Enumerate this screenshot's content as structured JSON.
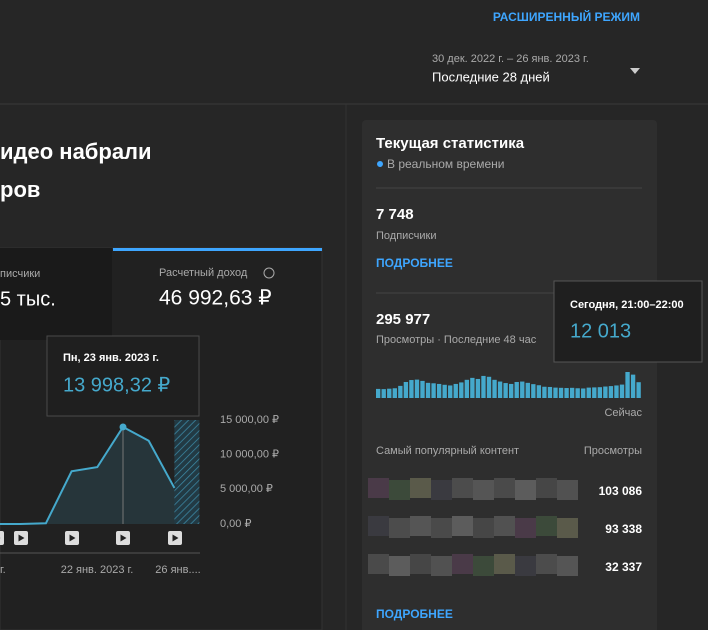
{
  "header": {
    "advanced_mode": "РАСШИРЕННЫЙ РЕЖИМ",
    "date_range": "30 дек. 2022 г. – 26 янв. 2023 г.",
    "period": "Последние 28 дней"
  },
  "overview": {
    "headline": [
      "идео набрали",
      "ров"
    ],
    "tabs": [
      {
        "label": "писчики",
        "value": "5 тыс."
      },
      {
        "label": "Расчетный доход",
        "value": "46 992,63 ₽"
      }
    ],
    "tooltip": {
      "date": "Пн, 23 янв. 2023 г.",
      "value": "13 998,32 ₽"
    },
    "chart": {
      "type": "line",
      "values": [
        0,
        0,
        100,
        7600,
        8200,
        13998.32,
        12000,
        5200
      ],
      "color": "#45a9cc",
      "ylim": [
        0,
        15000
      ],
      "yticks": [
        {
          "value": 0,
          "label": "0,00 ₽"
        },
        {
          "value": 5000,
          "label": "5 000,00 ₽"
        },
        {
          "value": 10000,
          "label": "10 000,00 ₽"
        },
        {
          "value": 15000,
          "label": "15 000,00 ₽"
        }
      ],
      "x_labels": [
        "г.",
        "22 янв. 2023 г.",
        "26 янв...."
      ]
    }
  },
  "realtime": {
    "title": "Текущая статистика",
    "live": "В реальном времени",
    "subscribers": {
      "value": "7 748",
      "label": "Подписчики",
      "more": "ПОДРОБНЕЕ"
    },
    "views": {
      "value": "295 977",
      "label": "Просмотры · Последние 48 час",
      "now": "Сейчас",
      "chart": {
        "type": "bar",
        "color": "#45a9cc",
        "values": [
          4200,
          4100,
          4300,
          4500,
          5600,
          7400,
          8300,
          8500,
          7900,
          7000,
          6800,
          6500,
          6100,
          5800,
          6500,
          7200,
          8400,
          9300,
          8800,
          10200,
          9800,
          8400,
          7600,
          6900,
          6500,
          7400,
          7600,
          7000,
          6400,
          5900,
          5200,
          5100,
          4800,
          4700,
          4600,
          4700,
          4500,
          4400,
          4800,
          4900,
          5000,
          5300,
          5500,
          5800,
          6200,
          12013,
          10800,
          7300
        ]
      },
      "tooltip": {
        "time": "Сегодня, 21:00–22:00",
        "value": "12 013"
      }
    },
    "top_content": {
      "heading": "Самый популярный контент",
      "column": "Просмотры",
      "rows": [
        "103 086",
        "93 338",
        "32 337"
      ],
      "more": "ПОДРОБНЕЕ"
    }
  }
}
